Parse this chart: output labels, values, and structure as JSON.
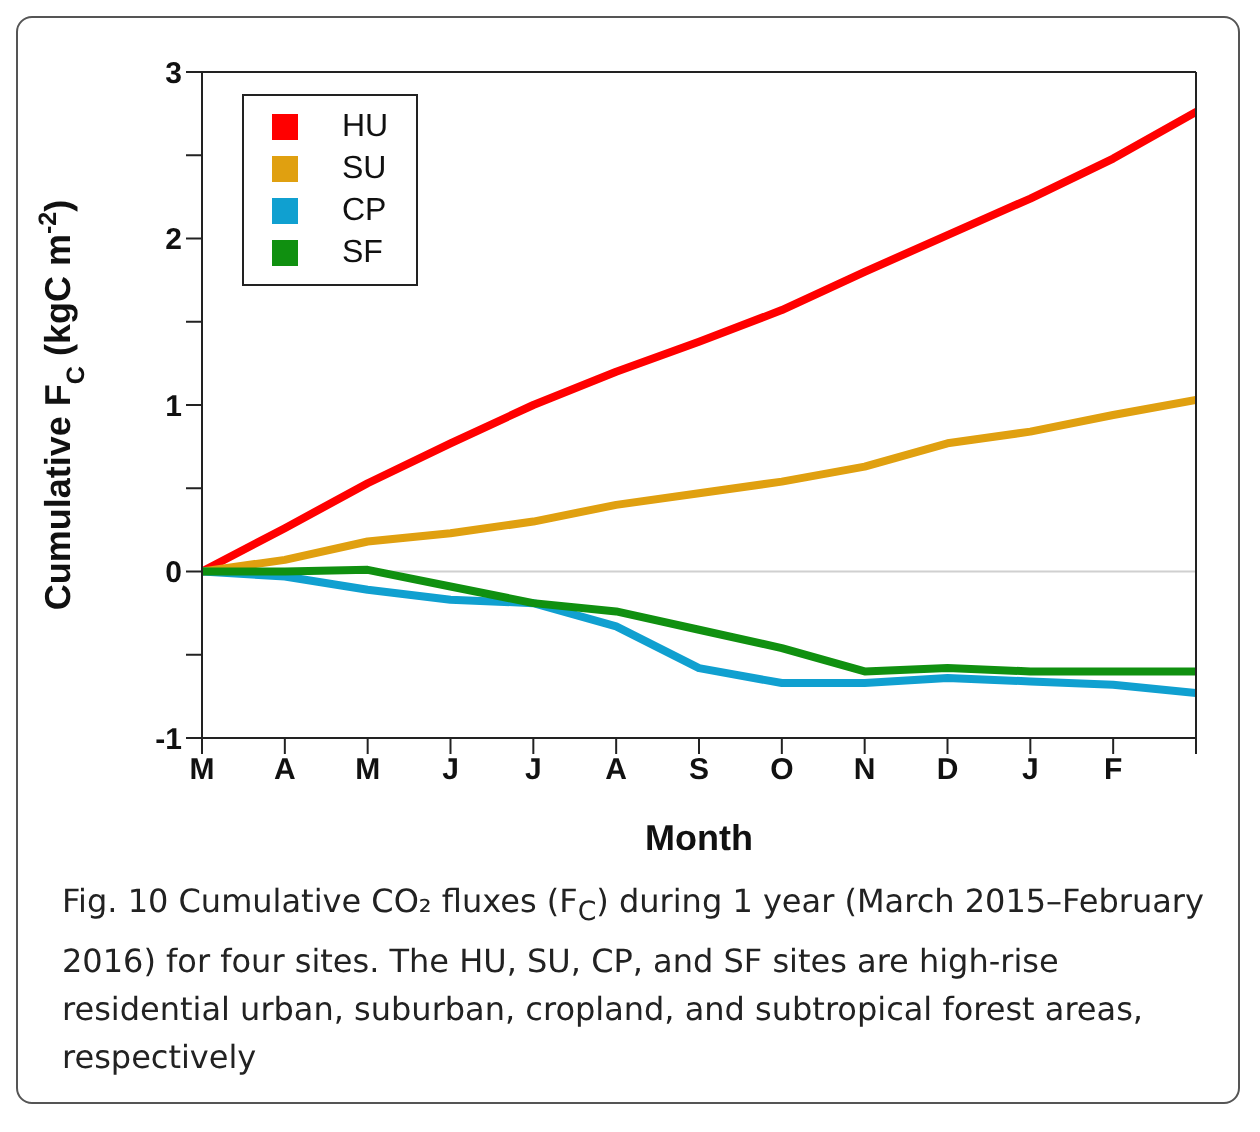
{
  "chart_data": {
    "type": "line",
    "xlabel": "Month",
    "ylabel": "Cumulative F$_{C}$  (kgC m$^{-2}$)",
    "annotations": [
      "Fig. 10  Cumulative CO₂ fluxes (F$_{C}$) during 1 year (March 2015–February 2016) for four sites. The HU, SU, CP, and SF sites are high-rise residential urban, suburban, cropland, and subtropical forest areas, respectively"
    ],
    "categories": [
      "M",
      "A",
      "M",
      "J",
      "J",
      "A",
      "S",
      "O",
      "N",
      "D",
      "J",
      "F",
      null
    ],
    "series": [
      {
        "name": "HU",
        "color": "#ff0000",
        "values": [
          0,
          0.26,
          0.53,
          0.77,
          1.0,
          1.2,
          1.38,
          1.57,
          1.8,
          2.02,
          2.24,
          2.48,
          2.76
        ]
      },
      {
        "name": "SU",
        "color": "#e0a010",
        "values": [
          0,
          0.07,
          0.18,
          0.23,
          0.3,
          0.4,
          0.47,
          0.54,
          0.63,
          0.77,
          0.84,
          0.94,
          1.03
        ]
      },
      {
        "name": "CP",
        "color": "#10a0d0",
        "values": [
          0,
          -0.03,
          -0.11,
          -0.17,
          -0.19,
          -0.33,
          -0.58,
          -0.67,
          -0.67,
          -0.64,
          -0.66,
          -0.68,
          -0.73
        ]
      },
      {
        "name": "SF",
        "color": "#109010",
        "values": [
          0,
          0,
          0.01,
          -0.09,
          -0.19,
          -0.24,
          -0.35,
          -0.46,
          -0.6,
          -0.58,
          -0.6,
          -0.6,
          -0.6
        ]
      }
    ],
    "ylim": [
      -1,
      3
    ],
    "yticks": [
      -1,
      {
        "value": -0.5,
        "label": null
      },
      0,
      {
        "value": 0.5,
        "label": null
      },
      1,
      {
        "value": 1.5,
        "label": null
      },
      2,
      {
        "value": 2.5,
        "label": null
      },
      3
    ],
    "ref_lines": [
      {
        "axis": "y",
        "value": 0,
        "label": null,
        "color": "#d0d0d0"
      }
    ],
    "grid": false,
    "legend": "top left",
    "marker": "none",
    "line_style": "solid"
  }
}
